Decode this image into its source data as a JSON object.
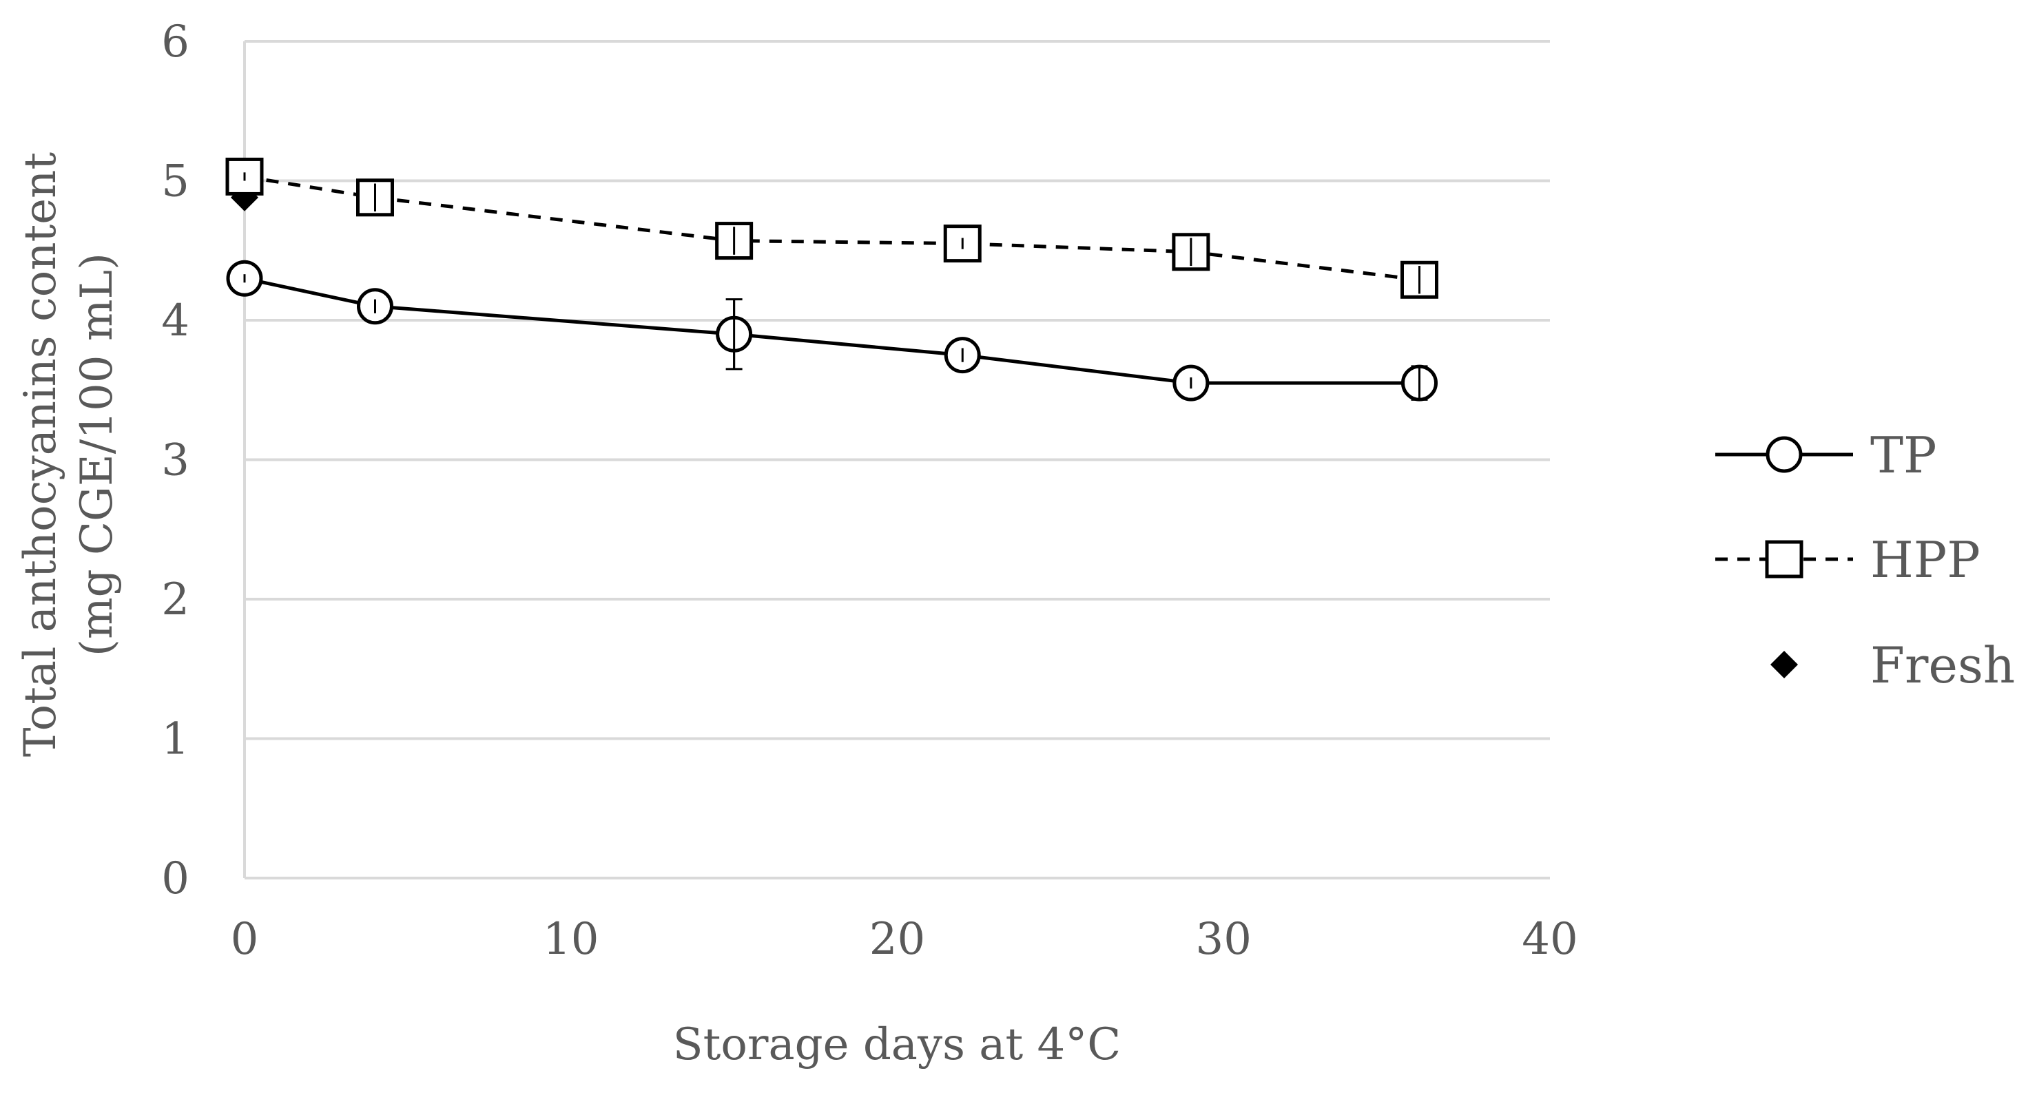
{
  "chart_data": {
    "type": "line",
    "title": "",
    "xlabel": "Storage days at 4°C",
    "ylabel_line1": "Total anthocyanins content",
    "ylabel_line2": "(mg CGE/100 mL)",
    "xlim": [
      0,
      40
    ],
    "ylim": [
      0,
      6
    ],
    "xticks": [
      0,
      10,
      20,
      30,
      40
    ],
    "yticks": [
      0,
      1,
      2,
      3,
      4,
      5,
      6
    ],
    "grid": "horizontal",
    "legend_position": "right",
    "series": [
      {
        "name": "TP",
        "marker": "circle",
        "line": "solid",
        "color": "#000000",
        "x": [
          0,
          4,
          15,
          22,
          29,
          36
        ],
        "values": [
          4.3,
          4.1,
          3.9,
          3.75,
          3.55,
          3.55
        ],
        "errors": [
          0.03,
          0.05,
          0.25,
          0.05,
          0.04,
          0.12
        ]
      },
      {
        "name": "HPP",
        "marker": "square",
        "line": "dashed",
        "color": "#000000",
        "x": [
          0,
          4,
          15,
          22,
          29,
          36
        ],
        "values": [
          5.03,
          4.88,
          4.57,
          4.55,
          4.49,
          4.29
        ],
        "errors": [
          0.03,
          0.1,
          0.1,
          0.04,
          0.1,
          0.1
        ]
      },
      {
        "name": "Fresh",
        "marker": "diamond",
        "line": "none",
        "color": "#000000",
        "x": [
          0
        ],
        "values": [
          4.88
        ],
        "errors": [
          0
        ]
      }
    ]
  }
}
